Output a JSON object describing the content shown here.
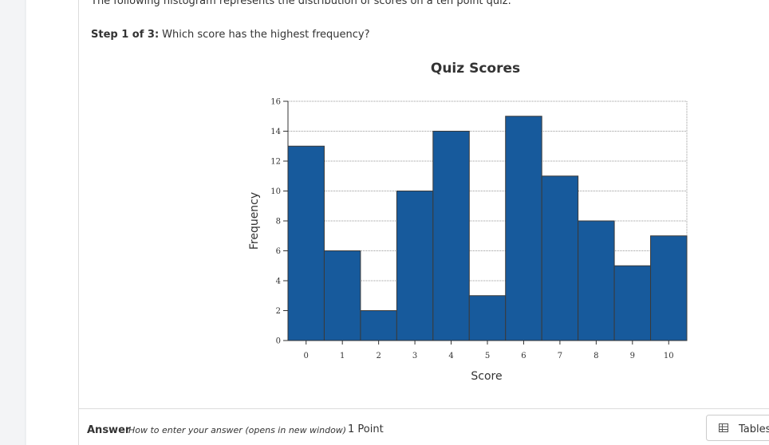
{
  "question": {
    "intro": "The following histogram represents the distribution of scores on a ten point quiz.",
    "step": "Step 1 of 3:",
    "prompt": "Which score has the highest frequency?"
  },
  "chart_data": {
    "type": "bar",
    "title": "Quiz Scores",
    "x_label": "Score",
    "y_label": "Frequency",
    "categories": [
      0,
      1,
      2,
      3,
      4,
      5,
      6,
      7,
      8,
      9,
      10
    ],
    "values": [
      13,
      6,
      2,
      10,
      14,
      3,
      15,
      11,
      8,
      5,
      7
    ],
    "color": "#175a9c",
    "ylim": [
      0,
      16
    ],
    "yticks": [
      0,
      2,
      4,
      6,
      8,
      10,
      12,
      14,
      16
    ],
    "grid": true
  },
  "answer": {
    "label": "Answer",
    "help_link": "How to enter your answer (opens in new window)",
    "points": "1 Point"
  },
  "tools": {
    "tables": "Tables"
  }
}
